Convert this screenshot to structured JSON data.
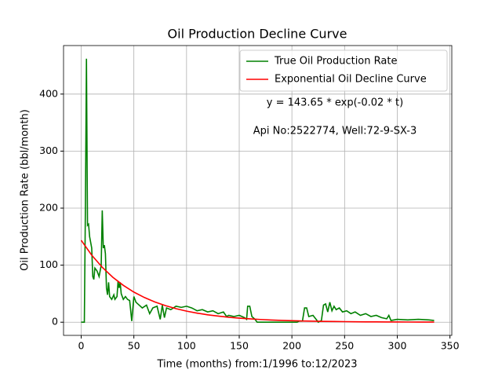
{
  "chart_data": {
    "type": "line",
    "title": "Oil Production Decline Curve",
    "xlabel": "Time (months) from:1/1996 to:12/2023",
    "ylabel": "Oil Production Rate (bbl/month)",
    "annotations": [
      "y = 143.65 * exp(-0.02 * t)",
      "Api No:2522774, Well:72-9-SX-3"
    ],
    "xlim": [
      -16.75,
      351.75
    ],
    "ylim": [
      -23.1,
      485.1
    ],
    "xticks": [
      0,
      50,
      100,
      150,
      200,
      250,
      300,
      350
    ],
    "yticks": [
      0,
      100,
      200,
      300,
      400
    ],
    "grid": true,
    "legend": "upper right",
    "series": [
      {
        "name": "True Oil Production Rate",
        "color": "#008000",
        "x": [
          0,
          3,
          4,
          5,
          6,
          7,
          8,
          10,
          11,
          12,
          13,
          15,
          17,
          19,
          20,
          21,
          22,
          23,
          24,
          25,
          26,
          27,
          29,
          31,
          32,
          34,
          35,
          36,
          37,
          38,
          40,
          42,
          44,
          46,
          48,
          50,
          52,
          55,
          58,
          62,
          65,
          68,
          72,
          75,
          77,
          79,
          81,
          85,
          90,
          95,
          100,
          105,
          110,
          115,
          120,
          125,
          130,
          135,
          138,
          140,
          145,
          150,
          155,
          157,
          158,
          160,
          162,
          165,
          167,
          175,
          185,
          195,
          205,
          207,
          210,
          212,
          214,
          216,
          220,
          223,
          225,
          228,
          230,
          232,
          234,
          236,
          238,
          240,
          242,
          245,
          248,
          252,
          256,
          260,
          265,
          270,
          275,
          280,
          285,
          290,
          292,
          294,
          300,
          310,
          320,
          330,
          335
        ],
        "values": [
          0,
          0,
          200,
          462,
          170,
          172,
          150,
          130,
          80,
          75,
          95,
          90,
          80,
          100,
          196,
          130,
          135,
          120,
          60,
          48,
          70,
          45,
          40,
          48,
          40,
          45,
          72,
          60,
          70,
          50,
          40,
          45,
          40,
          38,
          2,
          45,
          35,
          30,
          25,
          30,
          15,
          25,
          28,
          5,
          30,
          8,
          25,
          22,
          28,
          26,
          28,
          25,
          20,
          22,
          18,
          20,
          15,
          18,
          10,
          12,
          10,
          12,
          8,
          5,
          28,
          28,
          10,
          5,
          0,
          0,
          0,
          0,
          0,
          2,
          2,
          25,
          25,
          10,
          12,
          5,
          0,
          3,
          30,
          32,
          18,
          35,
          20,
          28,
          22,
          25,
          18,
          20,
          15,
          18,
          12,
          15,
          10,
          12,
          8,
          6,
          12,
          3,
          5,
          4,
          5,
          4,
          3
        ]
      },
      {
        "name": "Exponential Oil Decline Curve",
        "color": "#ff0000",
        "x": [
          0,
          10,
          20,
          30,
          40,
          50,
          60,
          70,
          80,
          90,
          100,
          110,
          120,
          130,
          140,
          150,
          160,
          170,
          180,
          190,
          200,
          210,
          220,
          230,
          240,
          250,
          260,
          270,
          280,
          290,
          300,
          310,
          320,
          335
        ],
        "values": [
          143.65,
          117.6,
          96.3,
          78.8,
          64.6,
          52.8,
          43.3,
          35.4,
          29.0,
          23.7,
          19.4,
          15.9,
          13.0,
          10.7,
          8.7,
          7.1,
          5.9,
          4.8,
          3.9,
          3.2,
          2.6,
          2.1,
          1.8,
          1.4,
          1.2,
          1.0,
          0.8,
          0.6,
          0.5,
          0.4,
          0.4,
          0.3,
          0.2,
          0.2
        ]
      }
    ]
  }
}
